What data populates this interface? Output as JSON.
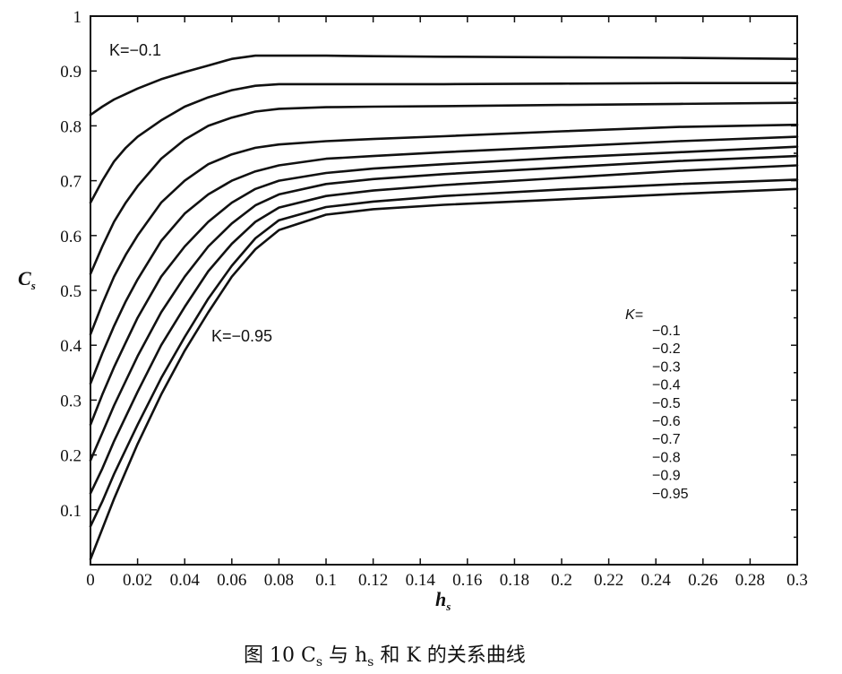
{
  "chart_data": {
    "type": "line",
    "xlabel": "h",
    "xlabel_sub": "s",
    "ylabel": "C",
    "ylabel_sub": "s",
    "xlim": [
      0,
      0.3
    ],
    "ylim": [
      0,
      1
    ],
    "x_ticks": [
      "0",
      "0.02",
      "0.04",
      "0.06",
      "0.08",
      "0.1",
      "0.12",
      "0.14",
      "0.16",
      "0.18",
      "0.2",
      "0.22",
      "0.24",
      "0.26",
      "0.28",
      "0.3"
    ],
    "y_ticks": [
      "0.1",
      "0.2",
      "0.3",
      "0.4",
      "0.5",
      "0.6",
      "0.7",
      "0.8",
      "0.9",
      "1"
    ],
    "x": [
      0,
      0.005,
      0.01,
      0.015,
      0.02,
      0.03,
      0.04,
      0.05,
      0.06,
      0.07,
      0.08,
      0.1,
      0.12,
      0.15,
      0.2,
      0.25,
      0.3
    ],
    "series": [
      {
        "name": "-0.1",
        "values": [
          0.82,
          0.835,
          0.848,
          0.858,
          0.868,
          0.885,
          0.898,
          0.91,
          0.922,
          0.928,
          0.928,
          0.928,
          0.927,
          0.926,
          0.925,
          0.924,
          0.922
        ]
      },
      {
        "name": "-0.2",
        "values": [
          0.66,
          0.7,
          0.735,
          0.76,
          0.78,
          0.81,
          0.835,
          0.852,
          0.865,
          0.873,
          0.876,
          0.876,
          0.876,
          0.876,
          0.877,
          0.878,
          0.878
        ]
      },
      {
        "name": "-0.3",
        "values": [
          0.53,
          0.58,
          0.625,
          0.66,
          0.69,
          0.74,
          0.775,
          0.8,
          0.815,
          0.826,
          0.831,
          0.834,
          0.835,
          0.836,
          0.838,
          0.84,
          0.842
        ]
      },
      {
        "name": "-0.4",
        "values": [
          0.42,
          0.475,
          0.525,
          0.565,
          0.6,
          0.66,
          0.7,
          0.73,
          0.748,
          0.76,
          0.766,
          0.772,
          0.776,
          0.781,
          0.79,
          0.798,
          0.802
        ]
      },
      {
        "name": "-0.5",
        "values": [
          0.33,
          0.385,
          0.435,
          0.48,
          0.52,
          0.59,
          0.64,
          0.675,
          0.7,
          0.717,
          0.728,
          0.74,
          0.745,
          0.752,
          0.762,
          0.772,
          0.78
        ]
      },
      {
        "name": "-0.6",
        "values": [
          0.255,
          0.31,
          0.36,
          0.405,
          0.45,
          0.525,
          0.58,
          0.625,
          0.66,
          0.685,
          0.7,
          0.714,
          0.722,
          0.73,
          0.742,
          0.752,
          0.762
        ]
      },
      {
        "name": "-0.7",
        "values": [
          0.19,
          0.24,
          0.29,
          0.335,
          0.38,
          0.46,
          0.525,
          0.58,
          0.622,
          0.655,
          0.675,
          0.694,
          0.703,
          0.712,
          0.724,
          0.736,
          0.745
        ]
      },
      {
        "name": "-0.8",
        "values": [
          0.13,
          0.175,
          0.225,
          0.27,
          0.315,
          0.4,
          0.47,
          0.535,
          0.585,
          0.625,
          0.651,
          0.672,
          0.682,
          0.692,
          0.705,
          0.718,
          0.728
        ]
      },
      {
        "name": "-0.9",
        "values": [
          0.07,
          0.115,
          0.165,
          0.21,
          0.255,
          0.34,
          0.415,
          0.485,
          0.545,
          0.595,
          0.628,
          0.652,
          0.662,
          0.672,
          0.684,
          0.694,
          0.702
        ]
      },
      {
        "name": "-0.95",
        "values": [
          0.01,
          0.065,
          0.12,
          0.17,
          0.22,
          0.31,
          0.39,
          0.46,
          0.525,
          0.575,
          0.61,
          0.638,
          0.648,
          0.656,
          0.666,
          0.676,
          0.685
        ]
      }
    ],
    "annotations": {
      "top": "K=−0.1",
      "bottom": "K=−0.95"
    },
    "legend": {
      "title": "K=",
      "entries": [
        "−0.1",
        "−0.2",
        "−0.3",
        "−0.4",
        "−0.5",
        "−0.6",
        "−0.7",
        "−0.8",
        "−0.9",
        "−0.95"
      ],
      "placement": "right"
    },
    "grid": false
  },
  "caption": {
    "text": "图 10   C",
    "sub_s": "s",
    "mid": " 与 h",
    "sub_s2": "s",
    "end": " 和 K 的关系曲线"
  }
}
